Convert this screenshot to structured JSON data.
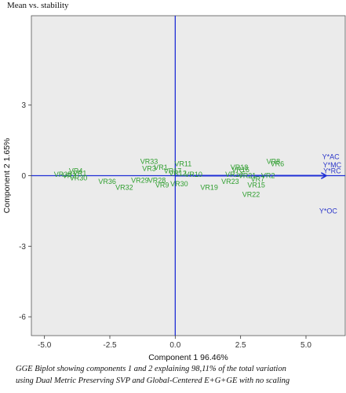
{
  "chart_data": {
    "type": "scatter",
    "title": "Mean vs. stability",
    "xlabel": "Component 1 96.46%",
    "ylabel": "Component 2 1.65%",
    "xlim": [
      -5.5,
      6.5
    ],
    "ylim": [
      -6.8,
      6.8
    ],
    "xticks": [
      "-5.0",
      "-2.5",
      "0.0",
      "2.5",
      "5.0"
    ],
    "xtick_values": [
      -5,
      -2.5,
      0,
      2.5,
      5
    ],
    "yticks": [
      "3",
      "0",
      "-3",
      "-6"
    ],
    "ytick_values": [
      3,
      0,
      -3,
      -6
    ],
    "grid": false,
    "axis_lines": [
      {
        "orientation": "vertical",
        "value": 0
      },
      {
        "orientation": "horizontal",
        "value": 0
      }
    ],
    "colors": {
      "genotypes": "#2e9e2e",
      "environments": "#2a35c9",
      "axes": "#1f2fd6",
      "panel": "#ebebeb"
    },
    "series": [
      {
        "name": "genotypes",
        "points": [
          {
            "label": "VR4",
            "x": -3.8,
            "y": 0.2
          },
          {
            "label": "VR1",
            "x": -3.65,
            "y": 0.1
          },
          {
            "label": "VR3",
            "x": -4.05,
            "y": 0.0
          },
          {
            "label": "VR35",
            "x": -4.3,
            "y": 0.05
          },
          {
            "label": "VR30",
            "x": -3.7,
            "y": -0.1
          },
          {
            "label": "VR36",
            "x": -2.6,
            "y": -0.25
          },
          {
            "label": "VR32",
            "x": -1.95,
            "y": -0.5
          },
          {
            "label": "VR29",
            "x": -1.35,
            "y": -0.2
          },
          {
            "label": "VR33",
            "x": -1.0,
            "y": 0.6
          },
          {
            "label": "VR3",
            "x": -1.0,
            "y": 0.3
          },
          {
            "label": "VR11",
            "x": 0.3,
            "y": 0.5
          },
          {
            "label": "VR1",
            "x": -0.55,
            "y": 0.35
          },
          {
            "label": "VR17",
            "x": -0.1,
            "y": 0.2
          },
          {
            "label": "VR12",
            "x": 0.1,
            "y": 0.1
          },
          {
            "label": "VR10",
            "x": 0.7,
            "y": 0.05
          },
          {
            "label": "VR28",
            "x": -0.7,
            "y": -0.2
          },
          {
            "label": "VR30",
            "x": 0.15,
            "y": -0.35
          },
          {
            "label": "VR9",
            "x": -0.5,
            "y": -0.4
          },
          {
            "label": "VR19",
            "x": 1.3,
            "y": -0.5
          },
          {
            "label": "VR23",
            "x": 2.1,
            "y": -0.25
          },
          {
            "label": "VR18",
            "x": 2.45,
            "y": 0.35
          },
          {
            "label": "VR16",
            "x": 2.5,
            "y": 0.25
          },
          {
            "label": "VR14",
            "x": 2.25,
            "y": 0.05
          },
          {
            "label": "VR21",
            "x": 2.75,
            "y": 0.0
          },
          {
            "label": "VR2",
            "x": 3.55,
            "y": 0.0
          },
          {
            "label": "VR7",
            "x": 3.15,
            "y": -0.15
          },
          {
            "label": "VR15",
            "x": 3.1,
            "y": -0.4
          },
          {
            "label": "VR22",
            "x": 2.9,
            "y": -0.8
          },
          {
            "label": "VR8",
            "x": 3.75,
            "y": 0.6
          },
          {
            "label": "VR6",
            "x": 3.9,
            "y": 0.5
          }
        ]
      },
      {
        "name": "environments",
        "points": [
          {
            "label": "Y*AC",
            "x": 5.95,
            "y": 0.8
          },
          {
            "label": "Y*MC",
            "x": 6.0,
            "y": 0.45
          },
          {
            "label": "Y*RC",
            "x": 6.0,
            "y": 0.2
          },
          {
            "label": "Y*OC",
            "x": 5.85,
            "y": -1.5
          }
        ]
      }
    ],
    "vectors": [
      {
        "from": [
          0,
          0
        ],
        "to": [
          5.75,
          0
        ]
      }
    ]
  },
  "caption": {
    "line1": "GGE Biplot showing components 1 and 2 explaining 98,11% of the total variation",
    "line2": "using Dual Metric Preserving SVP and Global-Centered E+G+GE with no scaling"
  }
}
